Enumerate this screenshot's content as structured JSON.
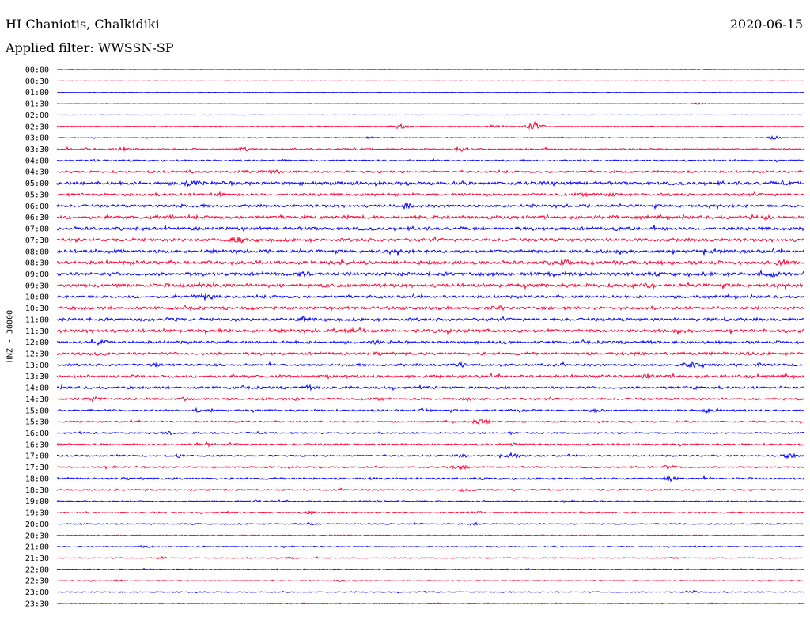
{
  "header": {
    "title": "HI Chaniotis, Chalkidiki",
    "date": "2020-06-15",
    "filter": "Applied filter: WWSSN-SP"
  },
  "colors": {
    "even_row": "#0000ff",
    "odd_row": "#ff0033"
  },
  "chart_data": {
    "type": "line",
    "title": "HI Chaniotis, Chalkidiki",
    "subtitle": "Applied filter: WWSSN-SP",
    "ylabel": "HNZ - 30000",
    "xlabel": "",
    "grid": false,
    "legend": "none",
    "categories": [
      "00:00",
      "00:30",
      "01:00",
      "01:30",
      "02:00",
      "02:30",
      "03:00",
      "03:30",
      "04:00",
      "04:30",
      "05:00",
      "05:30",
      "06:00",
      "06:30",
      "07:00",
      "07:30",
      "08:00",
      "08:30",
      "09:00",
      "09:30",
      "10:00",
      "10:30",
      "11:00",
      "11:30",
      "12:00",
      "12:30",
      "13:00",
      "13:30",
      "14:00",
      "14:30",
      "15:00",
      "15:30",
      "16:00",
      "16:30",
      "17:00",
      "17:30",
      "18:00",
      "18:30",
      "19:00",
      "19:30",
      "20:00",
      "20:30",
      "21:00",
      "21:30",
      "22:00",
      "22:30",
      "23:00",
      "23:30"
    ],
    "noise_level": [
      0.3,
      0.3,
      0.3,
      0.3,
      0.3,
      0.5,
      0.6,
      1.2,
      1.2,
      1.6,
      2.4,
      2.0,
      2.0,
      2.4,
      2.4,
      2.4,
      2.4,
      2.6,
      2.6,
      2.6,
      2.0,
      2.2,
      2.2,
      2.4,
      2.0,
      2.0,
      1.8,
      2.0,
      1.8,
      1.6,
      1.4,
      1.2,
      1.2,
      1.4,
      1.2,
      1.2,
      1.4,
      1.2,
      1.0,
      1.0,
      0.9,
      0.8,
      0.8,
      0.8,
      0.7,
      0.6,
      0.8,
      0.6
    ],
    "events": [
      [],
      [],
      [],
      [
        [
          0.86,
          2.0
        ]
      ],
      [],
      [
        [
          0.46,
          3.5
        ],
        [
          0.59,
          3.0
        ],
        [
          0.64,
          6.0
        ]
      ],
      [
        [
          0.42,
          2.0
        ],
        [
          0.96,
          3.0
        ]
      ],
      [
        [
          0.04,
          2.5
        ],
        [
          0.09,
          3.5
        ],
        [
          0.25,
          3.0
        ],
        [
          0.54,
          4.0
        ]
      ],
      [
        [
          0.05,
          2.0
        ],
        [
          0.3,
          2.5
        ]
      ],
      [
        [
          0.18,
          3.0
        ],
        [
          0.25,
          3.0
        ],
        [
          0.29,
          4.0
        ],
        [
          0.84,
          2.5
        ]
      ],
      [
        [
          0.18,
          7.0
        ],
        [
          0.64,
          2.5
        ]
      ],
      [
        [
          0.22,
          3.0
        ],
        [
          0.74,
          3.0
        ]
      ],
      [
        [
          0.17,
          3.5
        ],
        [
          0.47,
          4.5
        ]
      ],
      [
        [
          0.15,
          3.5
        ],
        [
          0.75,
          4.0
        ],
        [
          0.95,
          4.5
        ]
      ],
      [
        [
          0.18,
          3.5
        ],
        [
          0.57,
          2.5
        ],
        [
          0.75,
          3.5
        ]
      ],
      [
        [
          0.24,
          6.0
        ],
        [
          0.78,
          3.0
        ]
      ],
      [
        [
          0.08,
          3.0
        ],
        [
          0.52,
          3.0
        ],
        [
          0.88,
          3.5
        ]
      ],
      [
        [
          0.2,
          3.5
        ],
        [
          0.68,
          5.5
        ],
        [
          0.76,
          3.5
        ],
        [
          0.97,
          4.5
        ]
      ],
      [
        [
          0.33,
          5.0
        ],
        [
          0.68,
          4.0
        ],
        [
          0.96,
          6.0
        ]
      ],
      [
        [
          0.08,
          3.0
        ],
        [
          0.2,
          4.5
        ],
        [
          0.39,
          2.5
        ],
        [
          0.79,
          4.0
        ]
      ],
      [
        [
          0.2,
          6.0
        ],
        [
          0.43,
          2.0
        ]
      ],
      [
        [
          0.48,
          3.0
        ],
        [
          0.59,
          5.5
        ],
        [
          0.66,
          3.0
        ]
      ],
      [
        [
          0.15,
          3.0
        ],
        [
          0.33,
          4.5
        ],
        [
          0.88,
          3.5
        ]
      ],
      [
        [
          0.22,
          3.5
        ],
        [
          0.39,
          4.5
        ],
        [
          0.51,
          3.0
        ]
      ],
      [
        [
          0.06,
          4.0
        ],
        [
          0.43,
          3.5
        ],
        [
          0.6,
          3.5
        ],
        [
          0.8,
          3.5
        ]
      ],
      [
        [
          0.06,
          4.0
        ],
        [
          0.78,
          3.5
        ],
        [
          0.93,
          3.5
        ]
      ],
      [
        [
          0.13,
          3.5
        ],
        [
          0.54,
          3.5
        ],
        [
          0.85,
          5.5
        ],
        [
          0.94,
          3.0
        ]
      ],
      [
        [
          0.11,
          2.5
        ],
        [
          0.79,
          4.0
        ],
        [
          0.93,
          3.0
        ]
      ],
      [
        [
          0.34,
          4.5
        ],
        [
          0.85,
          3.0
        ]
      ],
      [
        [
          0.05,
          4.5
        ],
        [
          0.17,
          3.0
        ],
        [
          0.32,
          3.5
        ],
        [
          0.55,
          3.5
        ]
      ],
      [
        [
          0.19,
          3.0
        ],
        [
          0.49,
          3.0
        ],
        [
          0.62,
          3.5
        ],
        [
          0.72,
          4.0
        ],
        [
          0.87,
          4.0
        ]
      ],
      [
        [
          0.57,
          5.5
        ]
      ],
      [
        [
          0.15,
          3.0
        ],
        [
          0.61,
          2.5
        ]
      ],
      [
        [
          0.2,
          3.5
        ],
        [
          0.61,
          2.5
        ]
      ],
      [
        [
          0.16,
          3.0
        ],
        [
          0.54,
          3.0
        ],
        [
          0.61,
          4.0
        ],
        [
          0.98,
          4.0
        ]
      ],
      [
        [
          0.54,
          4.0
        ],
        [
          0.82,
          4.0
        ]
      ],
      [
        [
          0.82,
          4.0
        ]
      ],
      [
        [
          0.55,
          3.0
        ]
      ],
      [
        [
          0.27,
          2.5
        ],
        [
          0.43,
          2.5
        ]
      ],
      [
        [
          0.34,
          3.0
        ],
        [
          0.56,
          2.5
        ]
      ],
      [
        [
          0.34,
          3.0
        ],
        [
          0.56,
          2.5
        ]
      ],
      [],
      [
        [
          0.12,
          2.5
        ]
      ],
      [
        [
          0.14,
          2.5
        ],
        [
          0.31,
          2.5
        ]
      ],
      [],
      [
        [
          0.08,
          2.0
        ],
        [
          0.38,
          2.5
        ]
      ],
      [
        [
          0.85,
          3.0
        ]
      ],
      []
    ]
  }
}
